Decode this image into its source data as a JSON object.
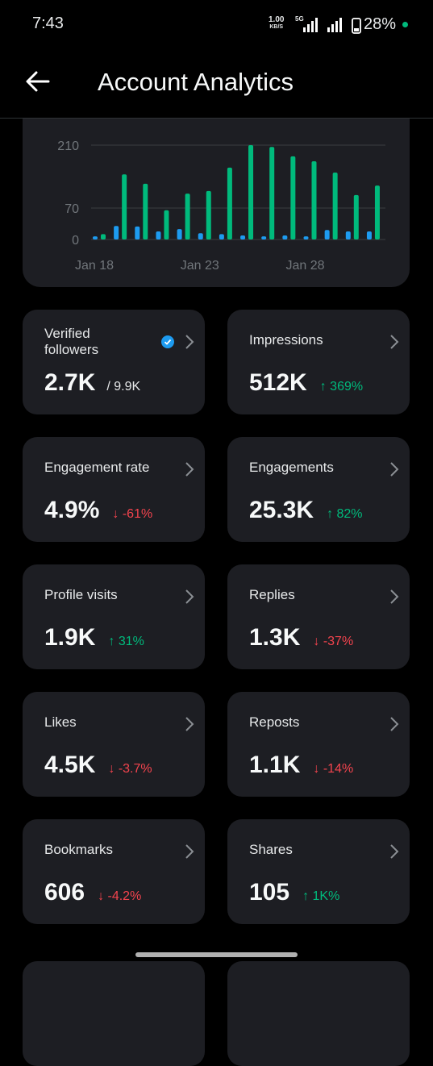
{
  "status_bar": {
    "time": "7:43",
    "network_speed": "1.00",
    "network_unit": "KB/S",
    "network_type": "5G",
    "battery": "28%"
  },
  "header": {
    "title": "Account Analytics"
  },
  "chart_data": {
    "type": "bar",
    "categories": [
      "Jan 18",
      null,
      null,
      null,
      null,
      "Jan 23",
      null,
      null,
      null,
      null,
      "Jan 28",
      null,
      null,
      null
    ],
    "series": [
      {
        "color": "#1d9bf0",
        "values": [
          7,
          30,
          29,
          18,
          23,
          14,
          12,
          9,
          7,
          9,
          7,
          21,
          18,
          18
        ]
      },
      {
        "color": "#00ba7c",
        "values": [
          12,
          145,
          124,
          65,
          102,
          108,
          160,
          210,
          206,
          185,
          174,
          149,
          99,
          120
        ]
      }
    ],
    "ylim": [
      0,
      210
    ],
    "yticks": [
      0,
      70,
      210
    ],
    "grid": true
  },
  "cards": [
    {
      "label": "Verified followers",
      "value": "2.7K",
      "secondary": "/ 9.9K",
      "verified": true
    },
    {
      "label": "Impressions",
      "value": "512K",
      "change": "↑ 369%",
      "trend": "up"
    },
    {
      "label": "Engagement rate",
      "value": "4.9%",
      "change": "↓ -61%",
      "trend": "down"
    },
    {
      "label": "Engagements",
      "value": "25.3K",
      "change": "↑ 82%",
      "trend": "up"
    },
    {
      "label": "Profile visits",
      "value": "1.9K",
      "change": "↑ 31%",
      "trend": "up"
    },
    {
      "label": "Replies",
      "value": "1.3K",
      "change": "↓ -37%",
      "trend": "down"
    },
    {
      "label": "Likes",
      "value": "4.5K",
      "change": "↓ -3.7%",
      "trend": "down"
    },
    {
      "label": "Reposts",
      "value": "1.1K",
      "change": "↓ -14%",
      "trend": "down"
    },
    {
      "label": "Bookmarks",
      "value": "606",
      "change": "↓ -4.2%",
      "trend": "down"
    },
    {
      "label": "Shares",
      "value": "105",
      "change": "↑ 1K%",
      "trend": "up"
    }
  ]
}
